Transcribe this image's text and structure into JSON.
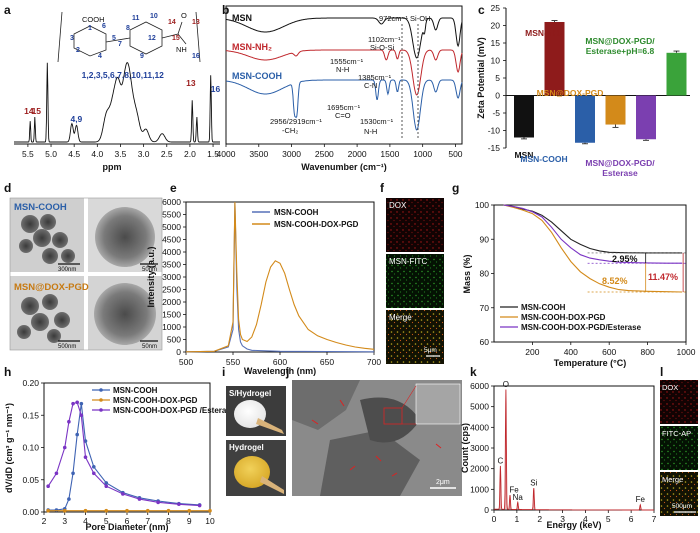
{
  "figure": {
    "panel_labels": [
      "a",
      "b",
      "c",
      "d",
      "e",
      "f",
      "g",
      "h",
      "i",
      "j",
      "k",
      "l"
    ],
    "a": {
      "xlabel": "ppm",
      "xticks": [
        "5.5",
        "5.0",
        "4.5",
        "4.0",
        "3.5",
        "3.0",
        "2.5",
        "2.0",
        "1.5"
      ],
      "peak_labels": [
        {
          "text": "14",
          "color": "#9b1b1b"
        },
        {
          "text": "15",
          "color": "#9b1b1b"
        },
        {
          "text": "4,9",
          "color": "#1f3f9a"
        },
        {
          "text": "1,2,3,5,6,7,8,10,11,12",
          "color": "#1f3f9a"
        },
        {
          "text": "13",
          "color": "#9b1b1b"
        },
        {
          "text": "16",
          "color": "#1f3f9a"
        }
      ],
      "structure_numbers": [
        "1",
        "2",
        "3",
        "4",
        "5",
        "6",
        "7",
        "8",
        "9",
        "10",
        "11",
        "12",
        "13",
        "14",
        "15",
        "16"
      ],
      "structure_groups": [
        "COOH",
        "NH",
        "O"
      ]
    },
    "b": {
      "xlabel": "Wavenumber (cm⁻¹)",
      "xticks": [
        "4000",
        "3500",
        "3000",
        "2500",
        "2000",
        "1500",
        "1000",
        "500"
      ],
      "series": [
        {
          "name": "MSN",
          "color": "#111111"
        },
        {
          "name": "MSN-NH₂",
          "color": "#c0282d"
        },
        {
          "name": "MSN-COOH",
          "color": "#2b5fa8"
        }
      ],
      "annotations": [
        "972cm⁻¹ Si-OH",
        "1102cm⁻¹",
        "Si-O-Si",
        "1555cm⁻¹",
        "N-H",
        "1385cm⁻¹",
        "C-N",
        "1695cm⁻¹",
        "C=O",
        "1530cm⁻¹",
        "N-H",
        "2956/2919cm⁻¹",
        "-CH₂"
      ]
    },
    "c": {
      "chart_data": {
        "type": "bar",
        "ylabel": "Zeta Potential (mV)",
        "ylim": [
          -15,
          25
        ],
        "yticks": [
          "25",
          "20",
          "15",
          "10",
          "5",
          "0",
          "-5",
          "-10",
          "-15"
        ],
        "categories": [
          "MSN",
          "MSN-NH₂",
          "MSN-COOH",
          "MSN@DOX-PGD",
          "MSN@DOX-PGD/ Esterase",
          "MSN@DOX-PGD/ Esterase+pH=6.8"
        ],
        "values": [
          -12,
          21,
          -13.5,
          -8.3,
          -12.5,
          12.2
        ],
        "errors": [
          0.4,
          0.4,
          0.3,
          0.8,
          0.3,
          0.5
        ],
        "colors": [
          "#111111",
          "#8e1b1b",
          "#2b5fa8",
          "#d38a1a",
          "#7b3fb0",
          "#3aa33a"
        ],
        "label_colors": [
          "#111111",
          "#8e1b1b",
          "#2b5fa8",
          "#d38a1a",
          "#7b3fb0",
          "#2e8b2e"
        ]
      }
    },
    "d": {
      "labels": [
        "MSN-COOH",
        "MSN@DOX-PGD"
      ],
      "scales": [
        "300nm",
        "50nm",
        "500nm",
        "50nm"
      ]
    },
    "e": {
      "chart_data": {
        "type": "line",
        "xlabel": "Wavelength (nm)",
        "ylabel": "Intensity (a.u.)",
        "xlim": [
          500,
          700
        ],
        "ylim": [
          0,
          6000
        ],
        "xticks": [
          "500",
          "550",
          "600",
          "650",
          "700"
        ],
        "yticks": [
          "0",
          "500",
          "1000",
          "1500",
          "2000",
          "2500",
          "3000",
          "3500",
          "4000",
          "4500",
          "5000",
          "5500",
          "6000"
        ],
        "series": [
          {
            "name": "MSN-COOH",
            "color": "#5670b8",
            "x": [
              500,
              530,
              545,
              550,
              552,
              554,
              556,
              558,
              560,
              565,
              570,
              600,
              650,
              700
            ],
            "y": [
              10,
              30,
              200,
              900,
              6000,
              2600,
              900,
              400,
              250,
              120,
              70,
              30,
              20,
              10
            ]
          },
          {
            "name": "MSN-COOH-DOX-PGD",
            "color": "#d38a1a",
            "x": [
              500,
              530,
              545,
              550,
              552,
              554,
              556,
              558,
              560,
              565,
              570,
              575,
              580,
              585,
              590,
              595,
              600,
              605,
              610,
              615,
              620,
              630,
              640,
              650,
              660,
              670,
              680,
              690,
              700
            ],
            "y": [
              10,
              30,
              250,
              1200,
              6000,
              3200,
              1300,
              700,
              500,
              420,
              600,
              1100,
              1900,
              2800,
              3400,
              3650,
              3550,
              3150,
              2500,
              1900,
              1450,
              900,
              650,
              500,
              380,
              280,
              200,
              150,
              110
            ]
          }
        ]
      }
    },
    "f": {
      "labels": [
        "DOX",
        "MSN-FITC",
        "Merge"
      ],
      "scale": "5μm"
    },
    "g": {
      "chart_data": {
        "type": "line",
        "xlabel": "Temperature (°C)",
        "ylabel": "Mass (%)",
        "xlim": [
          0,
          1000
        ],
        "ylim": [
          60,
          100
        ],
        "xticks": [
          "200",
          "400",
          "600",
          "800",
          "1000"
        ],
        "yticks": [
          "60",
          "70",
          "80",
          "90",
          "100"
        ],
        "series": [
          {
            "name": "MSN-COOH",
            "color": "#222222",
            "x": [
              50,
              100,
              150,
              200,
              250,
              300,
              350,
              400,
              450,
              500,
              550,
              600,
              650,
              700,
              800,
              900,
              980
            ],
            "y": [
              100,
              99.5,
              98.8,
              98.2,
              97,
              95,
              92.5,
              90,
              88.5,
              87.3,
              86.6,
              86.2,
              86.1,
              86.05,
              86,
              86,
              86
            ]
          },
          {
            "name": "MSN-COOH-DOX-PGD",
            "color": "#d38a1a",
            "x": [
              50,
              100,
              150,
              200,
              250,
              300,
              350,
              400,
              450,
              500,
              550,
              600,
              650,
              700,
              800,
              900,
              980
            ],
            "y": [
              100,
              99.3,
              98.5,
              97.5,
              95.5,
              92,
              87.5,
              83.5,
              80.5,
              78.5,
              77,
              76,
              75.3,
              75,
              74.8,
              74.7,
              74.6
            ]
          },
          {
            "name": "MSN-COOH-DOX-PGD/Esterase",
            "color": "#7a34c4",
            "x": [
              50,
              100,
              150,
              200,
              250,
              300,
              350,
              400,
              450,
              500,
              550,
              600,
              650,
              700,
              800,
              900,
              980
            ],
            "y": [
              100,
              99.6,
              99,
              98,
              96.5,
              93.5,
              90,
              87.5,
              85.5,
              84.5,
              84,
              83.6,
              83.3,
              83.2,
              83.1,
              83,
              83
            ]
          }
        ],
        "annotations": [
          "2.95%",
          "8.52%",
          "11.47%"
        ]
      }
    },
    "h": {
      "chart_data": {
        "type": "line",
        "xlabel": "Pore Diameter (nm)",
        "ylabel": "dV/dD (cm³ g⁻¹ nm⁻¹)",
        "xlim": [
          2,
          10
        ],
        "ylim": [
          0,
          0.2
        ],
        "xticks": [
          "2",
          "3",
          "4",
          "5",
          "6",
          "7",
          "8",
          "9",
          "10"
        ],
        "yticks": [
          "0.00",
          "0.05",
          "0.10",
          "0.15",
          "0.20"
        ],
        "series": [
          {
            "name": "MSN-COOH",
            "color": "#3f63b3",
            "x": [
              2.2,
              2.6,
              3.0,
              3.2,
              3.4,
              3.6,
              3.8,
              4.0,
              4.4,
              5.0,
              5.8,
              6.6,
              7.5,
              8.5,
              9.5
            ],
            "y": [
              0.003,
              0.003,
              0.005,
              0.02,
              0.06,
              0.12,
              0.168,
              0.11,
              0.07,
              0.045,
              0.03,
              0.022,
              0.017,
              0.013,
              0.011
            ]
          },
          {
            "name": "MSN-COOH-DOX-PGD",
            "color": "#d38a1a",
            "x": [
              2.2,
              3.0,
              4.0,
              5.0,
              6.0,
              7.0,
              8.0,
              9.0,
              10.0
            ],
            "y": [
              0.002,
              0.002,
              0.002,
              0.002,
              0.002,
              0.002,
              0.002,
              0.002,
              0.002
            ]
          },
          {
            "name": "MSN-COOH-DOX-PGD /Esterase",
            "color": "#7a34c4",
            "x": [
              2.2,
              2.6,
              3.0,
              3.2,
              3.4,
              3.6,
              3.8,
              4.0,
              4.4,
              5.0,
              5.8,
              6.6,
              7.5,
              8.5,
              9.5
            ],
            "y": [
              0.04,
              0.06,
              0.1,
              0.14,
              0.168,
              0.17,
              0.15,
              0.085,
              0.06,
              0.04,
              0.028,
              0.02,
              0.015,
              0.012,
              0.01
            ]
          }
        ]
      }
    },
    "i": {
      "labels": [
        "S/Hydrogel",
        "Hydrogel"
      ]
    },
    "j": {
      "scale": "2μm"
    },
    "k": {
      "chart_data": {
        "type": "line",
        "xlabel": "Energy (keV)",
        "ylabel": "Count (cps)",
        "xlim": [
          0,
          7
        ],
        "ylim": [
          0,
          6000
        ],
        "xticks": [
          "0",
          "1",
          "2",
          "3",
          "4",
          "5",
          "6",
          "7"
        ],
        "yticks": [
          "0",
          "1000",
          "2000",
          "3000",
          "4000",
          "5000",
          "6000"
        ],
        "peaks": [
          {
            "label": "C",
            "x": 0.28,
            "y": 2100
          },
          {
            "label": "O",
            "x": 0.52,
            "y": 5800
          },
          {
            "label": "Fe",
            "x": 0.7,
            "y": 700
          },
          {
            "label": "Na",
            "x": 1.04,
            "y": 350
          },
          {
            "label": "Si",
            "x": 1.74,
            "y": 1050
          },
          {
            "label": "Fe",
            "x": 6.4,
            "y": 250
          }
        ]
      }
    },
    "l": {
      "labels": [
        "DOX",
        "FITC-AP",
        "Merge"
      ],
      "scale": "500μm"
    }
  }
}
